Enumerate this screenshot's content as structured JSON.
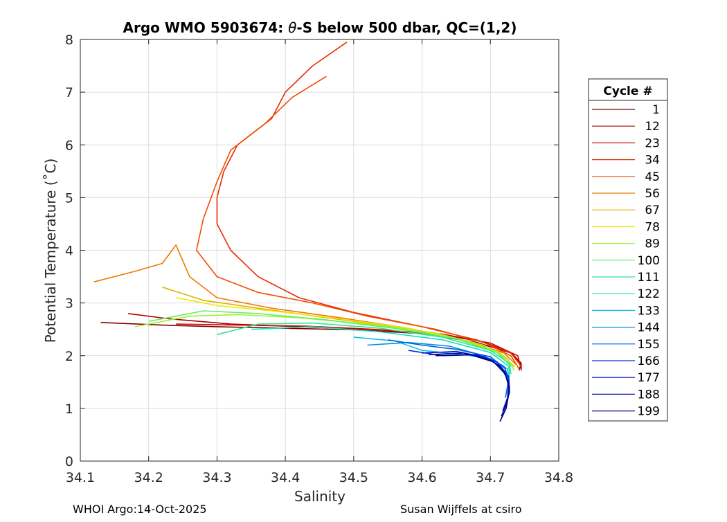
{
  "chart_data": {
    "type": "line",
    "title_pre": "Argo WMO 5903674: ",
    "title_theta": "θ",
    "title_post": "-S below 500 dbar,  QC=(1,2)",
    "xlabel": "Salinity",
    "ylabel": "Potential Temperature (˚C)",
    "xlim": [
      34.1,
      34.8
    ],
    "ylim": [
      0,
      8
    ],
    "xticks": [
      34.1,
      34.2,
      34.3,
      34.4,
      34.5,
      34.6,
      34.7,
      34.8
    ],
    "xtick_labels": [
      "34.1",
      "34.2",
      "34.3",
      "34.4",
      "34.5",
      "34.6",
      "34.7",
      "34.8"
    ],
    "yticks": [
      0,
      1,
      2,
      3,
      4,
      5,
      6,
      7,
      8
    ],
    "ytick_labels": [
      "0",
      "1",
      "2",
      "3",
      "4",
      "5",
      "6",
      "7",
      "8"
    ],
    "grid": true,
    "legend_title": "Cycle #",
    "legend_position": "outside-right",
    "legend": [
      {
        "label": "1",
        "color": "#800000"
      },
      {
        "label": "12",
        "color": "#a80000"
      },
      {
        "label": "23",
        "color": "#cc0a00"
      },
      {
        "label": "34",
        "color": "#e82a00"
      },
      {
        "label": "45",
        "color": "#f24a00"
      },
      {
        "label": "56",
        "color": "#f07800"
      },
      {
        "label": "67",
        "color": "#e0b000"
      },
      {
        "label": "78",
        "color": "#e8e800"
      },
      {
        "label": "89",
        "color": "#a0f030"
      },
      {
        "label": "100",
        "color": "#60f060"
      },
      {
        "label": "111",
        "color": "#30e890"
      },
      {
        "label": "122",
        "color": "#10e0c0"
      },
      {
        "label": "133",
        "color": "#10c0e8"
      },
      {
        "label": "144",
        "color": "#0090d8"
      },
      {
        "label": "155",
        "color": "#0060e8"
      },
      {
        "label": "166",
        "color": "#0030d8"
      },
      {
        "label": "177",
        "color": "#0010c0"
      },
      {
        "label": "188",
        "color": "#000ca0"
      },
      {
        "label": "199",
        "color": "#000080"
      }
    ],
    "series": [
      {
        "name": "1",
        "color": "#800000",
        "points": [
          [
            34.13,
            2.63
          ],
          [
            34.22,
            2.58
          ],
          [
            34.3,
            2.55
          ],
          [
            34.4,
            2.52
          ],
          [
            34.5,
            2.49
          ],
          [
            34.6,
            2.42
          ],
          [
            34.68,
            2.25
          ],
          [
            34.73,
            2.05
          ],
          [
            34.745,
            1.85
          ],
          [
            34.745,
            1.72
          ]
        ]
      },
      {
        "name": "12",
        "color": "#a80000",
        "points": [
          [
            34.17,
            2.8
          ],
          [
            34.23,
            2.7
          ],
          [
            34.32,
            2.6
          ],
          [
            34.42,
            2.55
          ],
          [
            34.52,
            2.5
          ],
          [
            34.62,
            2.42
          ],
          [
            34.69,
            2.26
          ],
          [
            34.73,
            2.06
          ],
          [
            34.745,
            1.86
          ],
          [
            34.742,
            1.72
          ]
        ]
      },
      {
        "name": "23",
        "color": "#cc0a00",
        "points": [
          [
            34.24,
            2.6
          ],
          [
            34.33,
            2.58
          ],
          [
            34.43,
            2.56
          ],
          [
            34.53,
            2.5
          ],
          [
            34.63,
            2.41
          ],
          [
            34.7,
            2.24
          ],
          [
            34.74,
            2.0
          ],
          [
            34.745,
            1.75
          ]
        ]
      },
      {
        "name": "34",
        "color": "#e82a00",
        "points": [
          [
            34.49,
            7.95
          ],
          [
            34.44,
            7.5
          ],
          [
            34.4,
            7.0
          ],
          [
            34.38,
            6.5
          ],
          [
            34.33,
            6.0
          ],
          [
            34.31,
            5.5
          ],
          [
            34.3,
            5.0
          ],
          [
            34.3,
            4.5
          ],
          [
            34.32,
            4.0
          ],
          [
            34.36,
            3.5
          ],
          [
            34.42,
            3.1
          ],
          [
            34.5,
            2.82
          ],
          [
            34.6,
            2.55
          ],
          [
            34.68,
            2.3
          ],
          [
            34.73,
            2.05
          ],
          [
            34.745,
            1.8
          ]
        ]
      },
      {
        "name": "45",
        "color": "#f24a00",
        "points": [
          [
            34.46,
            7.3
          ],
          [
            34.41,
            6.9
          ],
          [
            34.37,
            6.4
          ],
          [
            34.32,
            5.9
          ],
          [
            34.3,
            5.3
          ],
          [
            34.28,
            4.6
          ],
          [
            34.27,
            4.0
          ],
          [
            34.3,
            3.5
          ],
          [
            34.36,
            3.2
          ],
          [
            34.44,
            3.0
          ],
          [
            34.52,
            2.75
          ],
          [
            34.62,
            2.5
          ],
          [
            34.69,
            2.25
          ],
          [
            34.73,
            2.0
          ],
          [
            34.742,
            1.75
          ]
        ]
      },
      {
        "name": "56",
        "color": "#f07800",
        "points": [
          [
            34.12,
            3.4
          ],
          [
            34.18,
            3.6
          ],
          [
            34.22,
            3.75
          ],
          [
            34.24,
            4.1
          ],
          [
            34.26,
            3.5
          ],
          [
            34.3,
            3.1
          ],
          [
            34.38,
            2.9
          ],
          [
            34.48,
            2.72
          ],
          [
            34.58,
            2.52
          ],
          [
            34.66,
            2.3
          ],
          [
            34.72,
            2.05
          ],
          [
            34.74,
            1.8
          ]
        ]
      },
      {
        "name": "67",
        "color": "#e0b000",
        "points": [
          [
            34.22,
            3.3
          ],
          [
            34.28,
            3.05
          ],
          [
            34.36,
            2.9
          ],
          [
            34.46,
            2.72
          ],
          [
            34.56,
            2.55
          ],
          [
            34.65,
            2.33
          ],
          [
            34.71,
            2.08
          ],
          [
            34.735,
            1.8
          ]
        ]
      },
      {
        "name": "78",
        "color": "#e8e800",
        "points": [
          [
            34.24,
            3.1
          ],
          [
            34.3,
            2.95
          ],
          [
            34.38,
            2.85
          ],
          [
            34.48,
            2.7
          ],
          [
            34.58,
            2.52
          ],
          [
            34.66,
            2.3
          ],
          [
            34.715,
            2.05
          ],
          [
            34.735,
            1.78
          ]
        ]
      },
      {
        "name": "89",
        "color": "#a0f030",
        "points": [
          [
            34.18,
            2.55
          ],
          [
            34.26,
            2.75
          ],
          [
            34.33,
            2.78
          ],
          [
            34.42,
            2.72
          ],
          [
            34.52,
            2.6
          ],
          [
            34.62,
            2.43
          ],
          [
            34.69,
            2.2
          ],
          [
            34.725,
            1.95
          ],
          [
            34.735,
            1.72
          ]
        ]
      },
      {
        "name": "100",
        "color": "#60f060",
        "points": [
          [
            34.2,
            2.65
          ],
          [
            34.28,
            2.85
          ],
          [
            34.36,
            2.8
          ],
          [
            34.46,
            2.68
          ],
          [
            34.56,
            2.52
          ],
          [
            34.65,
            2.32
          ],
          [
            34.71,
            2.06
          ],
          [
            34.73,
            1.8
          ]
        ]
      },
      {
        "name": "111",
        "color": "#30e890",
        "points": [
          [
            34.3,
            2.4
          ],
          [
            34.36,
            2.6
          ],
          [
            34.44,
            2.62
          ],
          [
            34.54,
            2.52
          ],
          [
            34.63,
            2.35
          ],
          [
            34.7,
            2.1
          ],
          [
            34.728,
            1.85
          ],
          [
            34.73,
            1.65
          ]
        ]
      },
      {
        "name": "122",
        "color": "#10e0c0",
        "points": [
          [
            34.35,
            2.5
          ],
          [
            34.44,
            2.55
          ],
          [
            34.54,
            2.45
          ],
          [
            34.63,
            2.3
          ],
          [
            34.7,
            2.06
          ],
          [
            34.727,
            1.8
          ],
          [
            34.728,
            1.6
          ]
        ]
      },
      {
        "name": "133",
        "color": "#10c0e8",
        "points": [
          [
            34.5,
            2.35
          ],
          [
            34.56,
            2.28
          ],
          [
            34.6,
            2.1
          ],
          [
            34.66,
            2.02
          ],
          [
            34.7,
            1.95
          ],
          [
            34.725,
            1.75
          ],
          [
            34.727,
            1.55
          ]
        ]
      },
      {
        "name": "144",
        "color": "#0090d8",
        "points": [
          [
            34.52,
            2.2
          ],
          [
            34.58,
            2.25
          ],
          [
            34.64,
            2.18
          ],
          [
            34.69,
            2.0
          ],
          [
            34.72,
            1.8
          ],
          [
            34.727,
            1.55
          ]
        ]
      },
      {
        "name": "155",
        "color": "#0060e8",
        "points": [
          [
            34.55,
            2.3
          ],
          [
            34.6,
            2.2
          ],
          [
            34.65,
            2.12
          ],
          [
            34.7,
            1.98
          ],
          [
            34.722,
            1.75
          ],
          [
            34.726,
            1.5
          ],
          [
            34.722,
            1.2
          ]
        ]
      },
      {
        "name": "166",
        "color": "#0030d8",
        "points": [
          [
            34.58,
            2.1
          ],
          [
            34.63,
            2.0
          ],
          [
            34.68,
            2.02
          ],
          [
            34.71,
            1.88
          ],
          [
            34.727,
            1.6
          ],
          [
            34.728,
            1.3
          ],
          [
            34.722,
            1.05
          ]
        ]
      },
      {
        "name": "177",
        "color": "#0010c0",
        "points": [
          [
            34.6,
            2.05
          ],
          [
            34.65,
            2.08
          ],
          [
            34.69,
            1.98
          ],
          [
            34.715,
            1.8
          ],
          [
            34.727,
            1.5
          ],
          [
            34.725,
            1.2
          ],
          [
            34.718,
            0.95
          ]
        ]
      },
      {
        "name": "188",
        "color": "#000ca0",
        "points": [
          [
            34.61,
            2.02
          ],
          [
            34.66,
            2.05
          ],
          [
            34.7,
            1.92
          ],
          [
            34.72,
            1.72
          ],
          [
            34.728,
            1.4
          ],
          [
            34.724,
            1.1
          ],
          [
            34.716,
            0.85
          ]
        ]
      },
      {
        "name": "199",
        "color": "#000080",
        "points": [
          [
            34.62,
            2.0
          ],
          [
            34.67,
            2.02
          ],
          [
            34.705,
            1.88
          ],
          [
            34.722,
            1.65
          ],
          [
            34.728,
            1.35
          ],
          [
            34.723,
            1.0
          ],
          [
            34.714,
            0.75
          ]
        ]
      }
    ]
  },
  "footer": {
    "left": "WHOI Argo:14-Oct-2025",
    "right": "Susan Wijffels at csiro"
  }
}
